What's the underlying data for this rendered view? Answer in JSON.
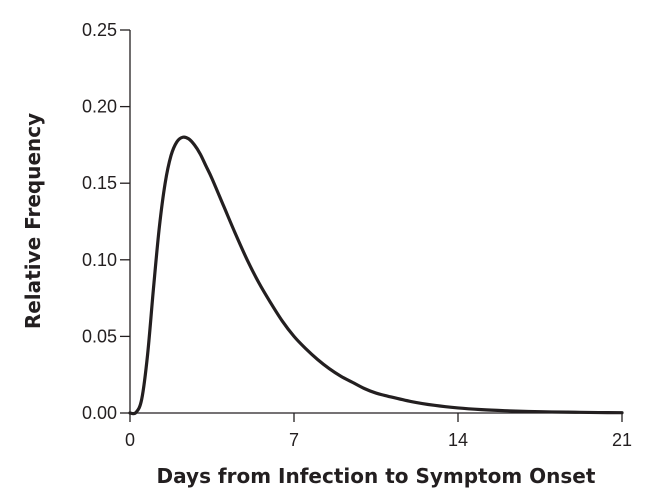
{
  "chart_data": {
    "type": "line",
    "title": "",
    "xlabel": "Days from Infection to Symptom Onset",
    "ylabel": "Relative Frequency",
    "xlim": [
      0,
      21
    ],
    "ylim": [
      0,
      0.25
    ],
    "x_ticks": [
      0,
      7,
      14,
      21
    ],
    "x_tick_labels": [
      "0",
      "7",
      "14",
      "21"
    ],
    "y_ticks": [
      0,
      0.05,
      0.1,
      0.15,
      0.2,
      0.25
    ],
    "y_tick_labels": [
      "0.00",
      "0.05",
      "0.10",
      "0.15",
      "0.20",
      "0.25"
    ],
    "grid": false,
    "legend": "none",
    "series": [
      {
        "color": "#231f20",
        "x": [
          0,
          0.25,
          0.5,
          0.75,
          1,
          1.25,
          1.5,
          1.75,
          2,
          2.25,
          2.5,
          2.75,
          3,
          3.25,
          3.5,
          4,
          4.5,
          5,
          5.5,
          6,
          6.5,
          7,
          7.5,
          8,
          8.5,
          9,
          9.5,
          10,
          10.5,
          11,
          12,
          13,
          14,
          15,
          16,
          17,
          18,
          19,
          20,
          21
        ],
        "y": [
          0,
          0.0003,
          0.009,
          0.038,
          0.081,
          0.121,
          0.15,
          0.168,
          0.177,
          0.18,
          0.179,
          0.175,
          0.169,
          0.161,
          0.153,
          0.135,
          0.117,
          0.1,
          0.085,
          0.072,
          0.06,
          0.05,
          0.042,
          0.035,
          0.029,
          0.024,
          0.02,
          0.016,
          0.013,
          0.011,
          0.0075,
          0.005,
          0.0033,
          0.0022,
          0.0015,
          0.001,
          0.0007,
          0.0005,
          0.0003,
          0.0002
        ]
      }
    ]
  }
}
